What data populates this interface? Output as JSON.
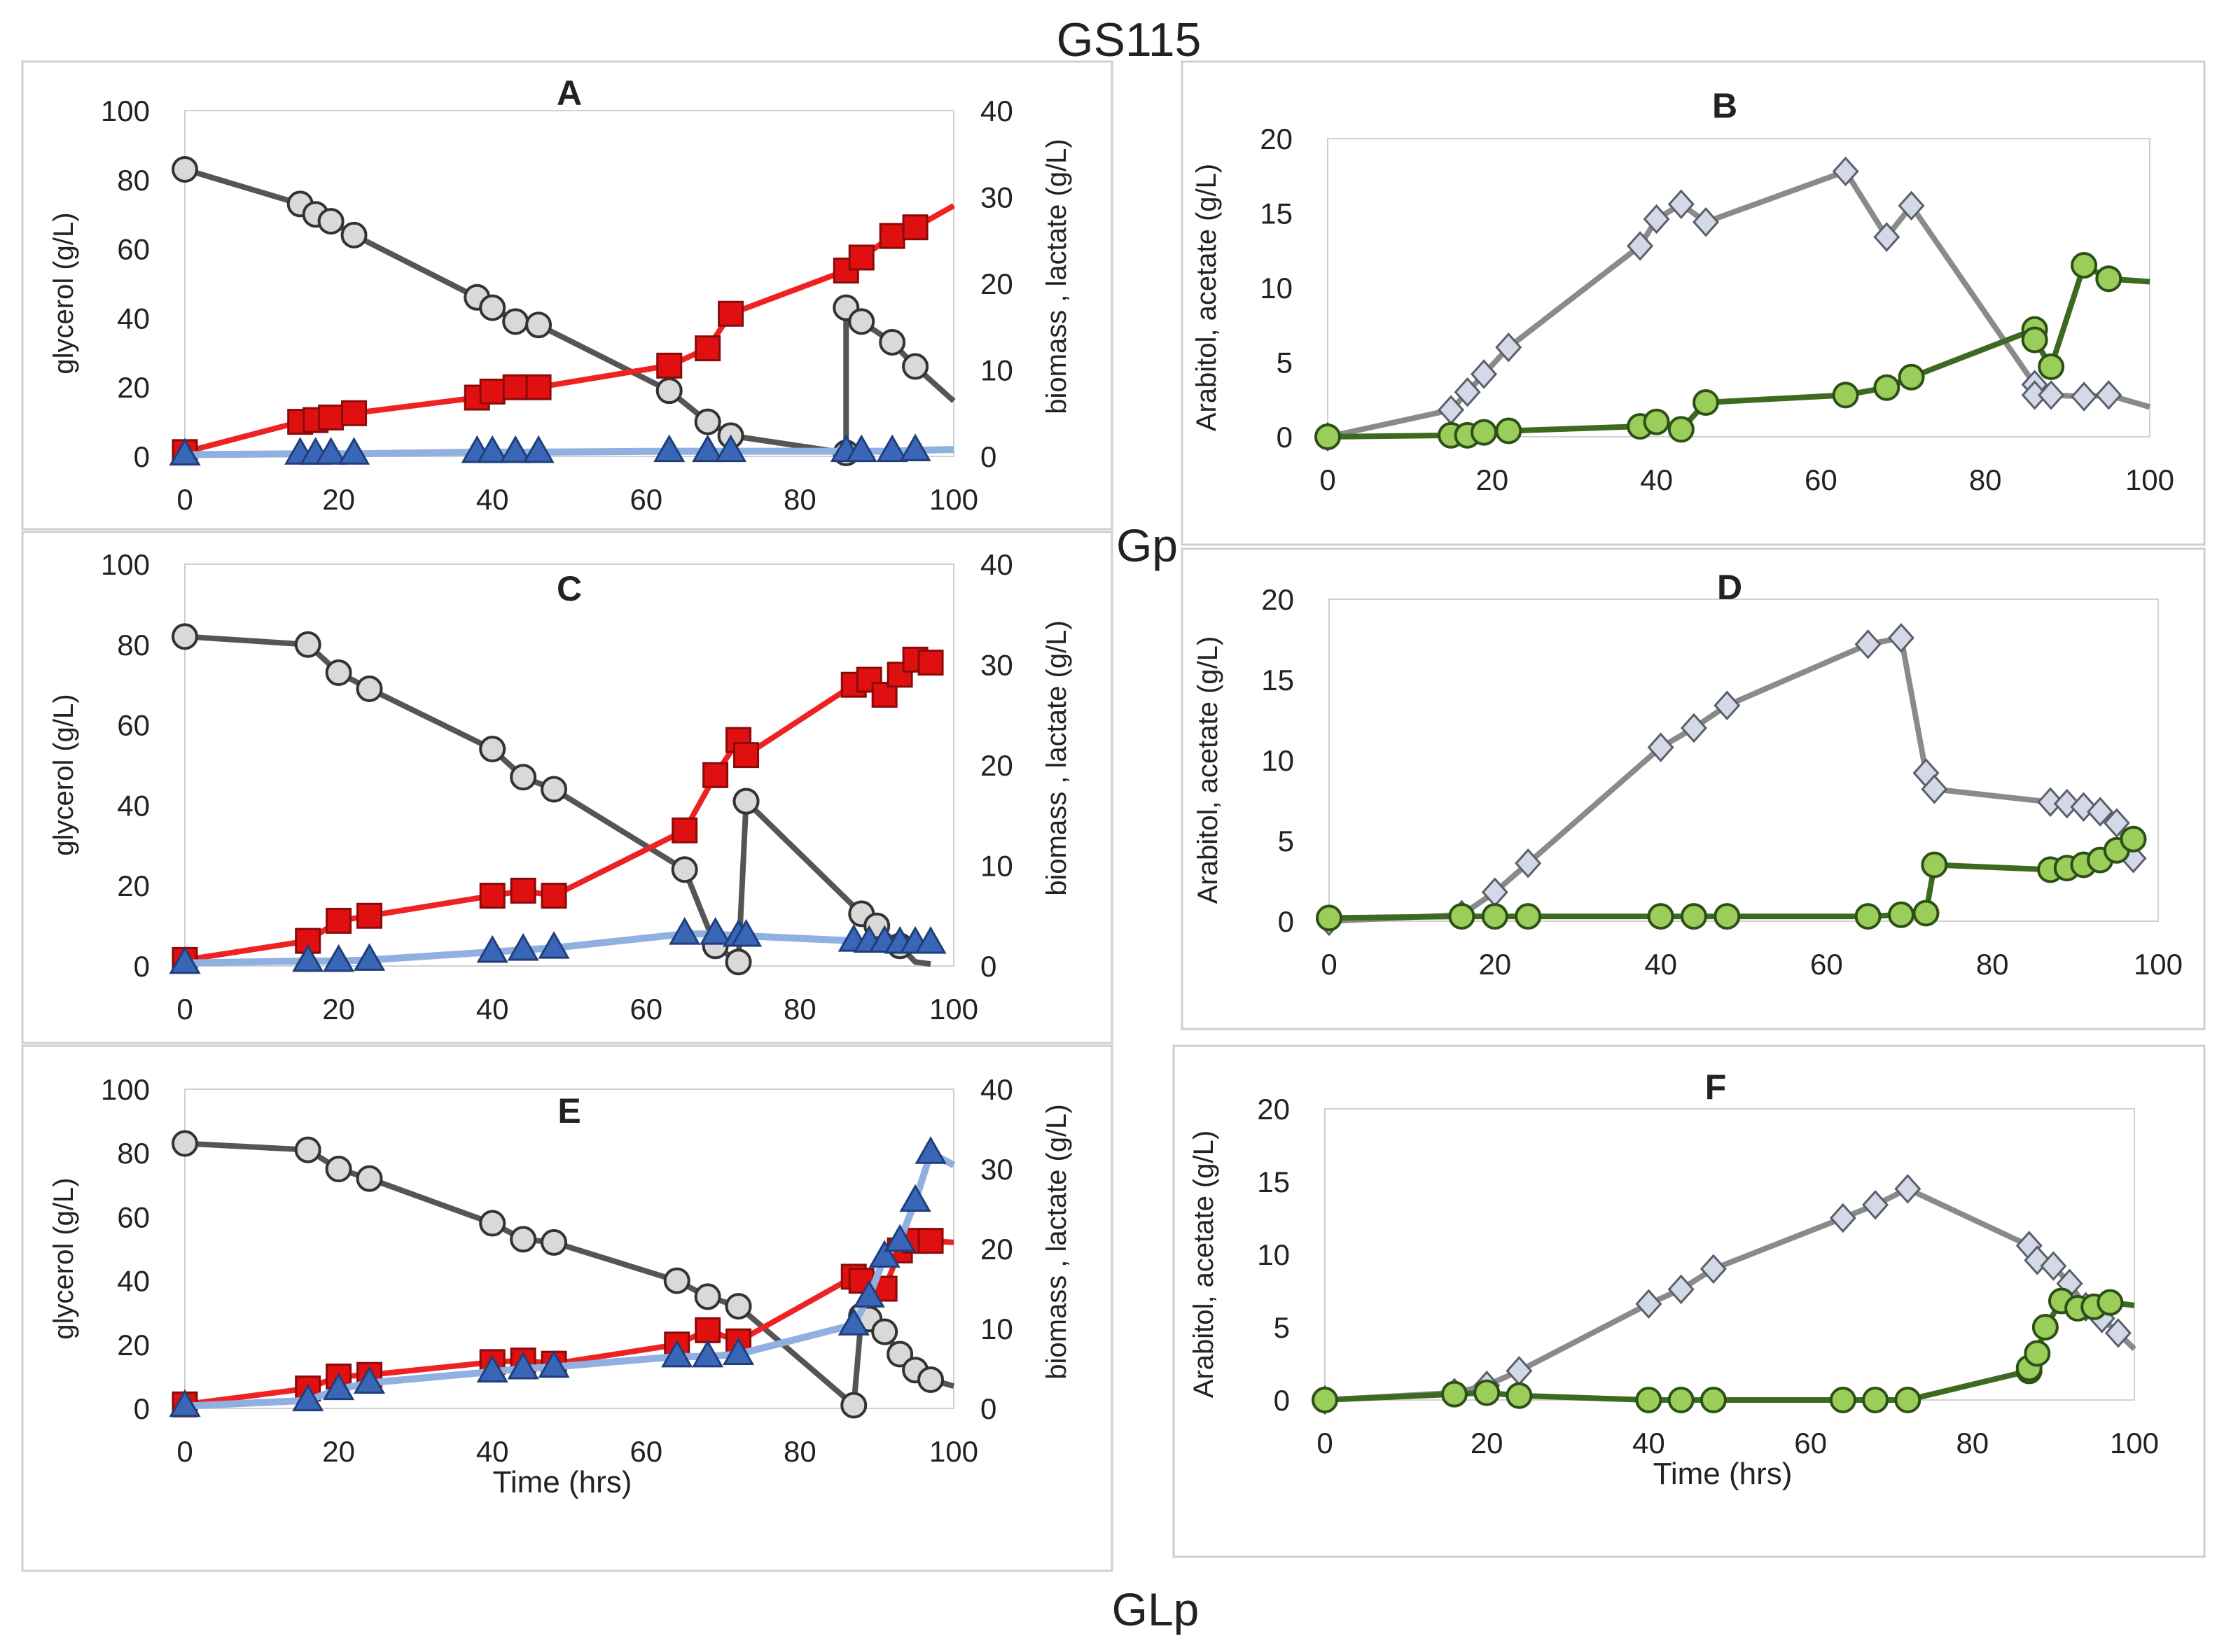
{
  "figure": {
    "title": "GS115",
    "row_label_gp": "Gp",
    "row_label_glp": "GLp"
  },
  "colors": {
    "glycerol": "#555555",
    "glycerol_marker": "#d9d9d9",
    "lactate": "#ee2222",
    "lactate_marker": "#e01010",
    "biomass": "#8fb0e0",
    "biomass_marker": "#3a66b8",
    "arabitol": "#8a8a8a",
    "arabitol_marker": "#d3d9e6",
    "acetate": "#3c6a1f",
    "acetate_marker": "#9acd5a"
  },
  "chart_data": [
    {
      "id": "A",
      "type": "line",
      "title": "A",
      "xlabel": "",
      "ylabel": "glycerol (g/L)",
      "y2label": "biomass , lactate (g/L)",
      "xlim": [
        0,
        100
      ],
      "ylim": [
        0,
        100
      ],
      "y2lim": [
        0,
        40
      ],
      "xticks": [
        "0",
        "20",
        "40",
        "60",
        "80",
        "100"
      ],
      "yticks": [
        "0",
        "20",
        "40",
        "60",
        "80",
        "100"
      ],
      "y2ticks": [
        "0",
        "10",
        "20",
        "30",
        "40"
      ],
      "grid": false,
      "series": [
        {
          "name": "glycerol",
          "axis": "left",
          "marker": "circle",
          "x": [
            0,
            15,
            17,
            19,
            22,
            38,
            40,
            43,
            46,
            63,
            68,
            71,
            86,
            86,
            88,
            92,
            95,
            100
          ],
          "y": [
            83,
            73,
            70,
            68,
            64,
            46,
            43,
            39,
            38,
            19,
            10,
            6,
            1,
            43,
            39,
            33,
            26,
            16
          ],
          "markers_count": 17
        },
        {
          "name": "lactate",
          "axis": "right",
          "marker": "square",
          "x": [
            0,
            15,
            17,
            19,
            22,
            38,
            40,
            43,
            46,
            63,
            68,
            71,
            86,
            88,
            92,
            95,
            100
          ],
          "y": [
            0.5,
            4,
            4.2,
            4.5,
            5,
            6.8,
            7.5,
            8,
            8,
            10.5,
            12.5,
            16.5,
            21.5,
            23,
            25.5,
            26.5,
            29
          ],
          "markers_count": 16
        },
        {
          "name": "biomass",
          "axis": "right",
          "marker": "triangle",
          "x": [
            0,
            15,
            17,
            19,
            22,
            38,
            40,
            43,
            46,
            63,
            68,
            71,
            86,
            88,
            92,
            95,
            100
          ],
          "y": [
            0.2,
            0.3,
            0.3,
            0.3,
            0.3,
            0.5,
            0.5,
            0.5,
            0.5,
            0.6,
            0.6,
            0.6,
            0.6,
            0.6,
            0.6,
            0.7,
            0.8
          ],
          "markers_count": 16
        }
      ]
    },
    {
      "id": "B",
      "type": "line",
      "title": "B",
      "xlabel": "",
      "ylabel": "Arabitol, acetate (g/L)",
      "xlim": [
        0,
        100
      ],
      "ylim": [
        0,
        20
      ],
      "xticks": [
        "0",
        "20",
        "40",
        "60",
        "80",
        "100"
      ],
      "yticks": [
        "0",
        "5",
        "10",
        "15",
        "20"
      ],
      "grid": false,
      "series": [
        {
          "name": "arabitol",
          "axis": "left",
          "marker": "diamond",
          "x": [
            0,
            15,
            17,
            19,
            22,
            38,
            40,
            43,
            46,
            63,
            68,
            71,
            86,
            86,
            88,
            92,
            95,
            100
          ],
          "y": [
            0,
            1.8,
            3,
            4.2,
            6,
            12.8,
            14.6,
            15.6,
            14.4,
            17.8,
            13.4,
            15.5,
            3.5,
            2.8,
            2.8,
            2.7,
            2.8,
            2
          ],
          "markers_count": 17
        },
        {
          "name": "acetate",
          "axis": "left",
          "marker": "circle",
          "x": [
            0,
            15,
            17,
            19,
            22,
            38,
            40,
            43,
            46,
            63,
            68,
            71,
            86,
            86,
            88,
            92,
            95,
            100
          ],
          "y": [
            0,
            0.1,
            0.1,
            0.3,
            0.4,
            0.7,
            1,
            0.5,
            2.3,
            2.8,
            3.3,
            4,
            7.2,
            6.5,
            4.7,
            11.5,
            10.6,
            10.4
          ],
          "markers_count": 17
        }
      ]
    },
    {
      "id": "C",
      "type": "line",
      "title": "C",
      "xlabel": "",
      "ylabel": "glycerol (g/L)",
      "y2label": "biomass , lactate (g/L)",
      "xlim": [
        0,
        100
      ],
      "ylim": [
        0,
        100
      ],
      "y2lim": [
        0,
        40
      ],
      "xticks": [
        "0",
        "20",
        "40",
        "60",
        "80",
        "100"
      ],
      "yticks": [
        "0",
        "20",
        "40",
        "60",
        "80",
        "100"
      ],
      "y2ticks": [
        "0",
        "10",
        "20",
        "30",
        "40"
      ],
      "grid": false,
      "series": [
        {
          "name": "glycerol",
          "axis": "left",
          "marker": "circle",
          "x": [
            0,
            16,
            20,
            24,
            40,
            44,
            48,
            65,
            69,
            72,
            73,
            73,
            88,
            90,
            93,
            95,
            97
          ],
          "y": [
            82,
            80,
            73,
            69,
            54,
            47,
            44,
            24,
            5,
            1,
            41,
            41,
            13,
            10,
            5,
            1,
            0.5
          ],
          "markers_count": 15
        },
        {
          "name": "lactate",
          "axis": "right",
          "marker": "square",
          "x": [
            0,
            16,
            20,
            24,
            40,
            44,
            48,
            65,
            69,
            72,
            73,
            87,
            89,
            91,
            93,
            95,
            97
          ],
          "y": [
            0.6,
            2.5,
            4.5,
            5,
            7,
            7.5,
            7,
            13.5,
            19,
            22.5,
            21,
            28,
            28.5,
            27,
            29,
            30.5,
            30.2
          ],
          "markers_count": 17
        },
        {
          "name": "biomass",
          "axis": "right",
          "marker": "triangle",
          "x": [
            0,
            16,
            20,
            24,
            40,
            44,
            48,
            65,
            69,
            72,
            73,
            87,
            89,
            91,
            93,
            95,
            97
          ],
          "y": [
            0.3,
            0.5,
            0.5,
            0.6,
            1.4,
            1.6,
            1.8,
            3.2,
            3.2,
            3,
            3,
            2.5,
            2.4,
            2.4,
            2.3,
            2.3,
            2.3
          ],
          "markers_count": 17
        }
      ]
    },
    {
      "id": "D",
      "type": "line",
      "title": "D",
      "xlabel": "",
      "ylabel": "Arabitol, acetate (g/L)",
      "xlim": [
        0,
        100
      ],
      "ylim": [
        0,
        20
      ],
      "xticks": [
        "0",
        "20",
        "40",
        "60",
        "80",
        "100"
      ],
      "yticks": [
        "0",
        "5",
        "10",
        "15",
        "20"
      ],
      "grid": false,
      "series": [
        {
          "name": "arabitol",
          "axis": "left",
          "marker": "diamond",
          "x": [
            0,
            16,
            20,
            24,
            40,
            44,
            48,
            65,
            69,
            72,
            73,
            87,
            89,
            91,
            93,
            95,
            97
          ],
          "y": [
            0,
            0.4,
            1.8,
            3.6,
            10.8,
            12,
            13.4,
            17.2,
            17.6,
            9.2,
            8.2,
            7.4,
            7.3,
            7.1,
            6.8,
            6.1,
            3.9
          ],
          "markers_count": 17
        },
        {
          "name": "acetate",
          "axis": "left",
          "marker": "circle",
          "x": [
            0,
            16,
            20,
            24,
            40,
            44,
            48,
            65,
            69,
            72,
            73,
            87,
            89,
            91,
            93,
            95,
            97
          ],
          "y": [
            0.2,
            0.3,
            0.3,
            0.3,
            0.3,
            0.3,
            0.3,
            0.3,
            0.4,
            0.5,
            3.5,
            3.2,
            3.3,
            3.5,
            3.8,
            4.4,
            5.1
          ],
          "markers_count": 17
        }
      ]
    },
    {
      "id": "E",
      "type": "line",
      "title": "E",
      "xlabel": "Time (hrs)",
      "ylabel": "glycerol (g/L)",
      "y2label": "biomass , lactate (g/L)",
      "xlim": [
        0,
        100
      ],
      "ylim": [
        0,
        100
      ],
      "y2lim": [
        0,
        40
      ],
      "xticks": [
        "0",
        "20",
        "40",
        "60",
        "80",
        "100"
      ],
      "yticks": [
        "0",
        "20",
        "40",
        "60",
        "80",
        "100"
      ],
      "y2ticks": [
        "0",
        "10",
        "20",
        "30",
        "40"
      ],
      "grid": false,
      "series": [
        {
          "name": "glycerol",
          "axis": "left",
          "marker": "circle",
          "x": [
            0,
            16,
            20,
            24,
            40,
            44,
            48,
            64,
            68,
            72,
            87,
            88,
            89,
            91,
            93,
            95,
            97,
            100
          ],
          "y": [
            83,
            81,
            75,
            72,
            58,
            53,
            52,
            40,
            35,
            32,
            1,
            29,
            28,
            24,
            17,
            12,
            9,
            7
          ],
          "markers_count": 17
        },
        {
          "name": "lactate",
          "axis": "right",
          "marker": "square",
          "x": [
            0,
            16,
            20,
            24,
            40,
            44,
            48,
            64,
            68,
            72,
            87,
            88,
            91,
            93,
            95,
            97,
            100
          ],
          "y": [
            0.5,
            2.5,
            4,
            4.2,
            5.8,
            6,
            5.6,
            8,
            9.8,
            8.4,
            16.5,
            16,
            15,
            19.8,
            21,
            21,
            20.8
          ],
          "markers_count": 16
        },
        {
          "name": "biomass",
          "axis": "right",
          "marker": "triangle",
          "x": [
            0,
            16,
            20,
            24,
            40,
            44,
            48,
            64,
            68,
            72,
            87,
            89,
            91,
            93,
            95,
            97,
            100
          ],
          "y": [
            0.3,
            1,
            2.4,
            3.2,
            4.6,
            5,
            5.2,
            6.5,
            6.5,
            6.8,
            10.5,
            14,
            19,
            21,
            26,
            32,
            30.5
          ],
          "markers_count": 16
        }
      ]
    },
    {
      "id": "F",
      "type": "line",
      "title": "F",
      "xlabel": "Time (hrs)",
      "ylabel": "Arabitol, acetate (g/L)",
      "xlim": [
        0,
        100
      ],
      "ylim": [
        0,
        20
      ],
      "xticks": [
        "0",
        "20",
        "40",
        "60",
        "80",
        "100"
      ],
      "yticks": [
        "0",
        "5",
        "10",
        "15",
        "20"
      ],
      "grid": false,
      "series": [
        {
          "name": "arabitol",
          "axis": "left",
          "marker": "diamond",
          "x": [
            0,
            16,
            20,
            24,
            40,
            44,
            48,
            64,
            68,
            72,
            87,
            88,
            90,
            92,
            94,
            96,
            98,
            100
          ],
          "y": [
            0,
            0.5,
            1,
            2,
            6.6,
            7.6,
            9,
            12.5,
            13.4,
            14.5,
            10.6,
            9.6,
            9.2,
            8,
            6.4,
            5.6,
            4.6,
            3.5
          ],
          "markers_count": 17
        },
        {
          "name": "acetate",
          "axis": "left",
          "marker": "circle",
          "x": [
            0,
            16,
            20,
            24,
            40,
            44,
            48,
            64,
            68,
            72,
            87,
            87,
            88,
            89,
            91,
            93,
            95,
            97,
            100
          ],
          "y": [
            0,
            0.4,
            0.5,
            0.3,
            0,
            0,
            0,
            0,
            0,
            0,
            2,
            2.2,
            3.2,
            5,
            6.8,
            6.3,
            6.4,
            6.7,
            6.5
          ],
          "markers_count": 18
        }
      ]
    }
  ]
}
